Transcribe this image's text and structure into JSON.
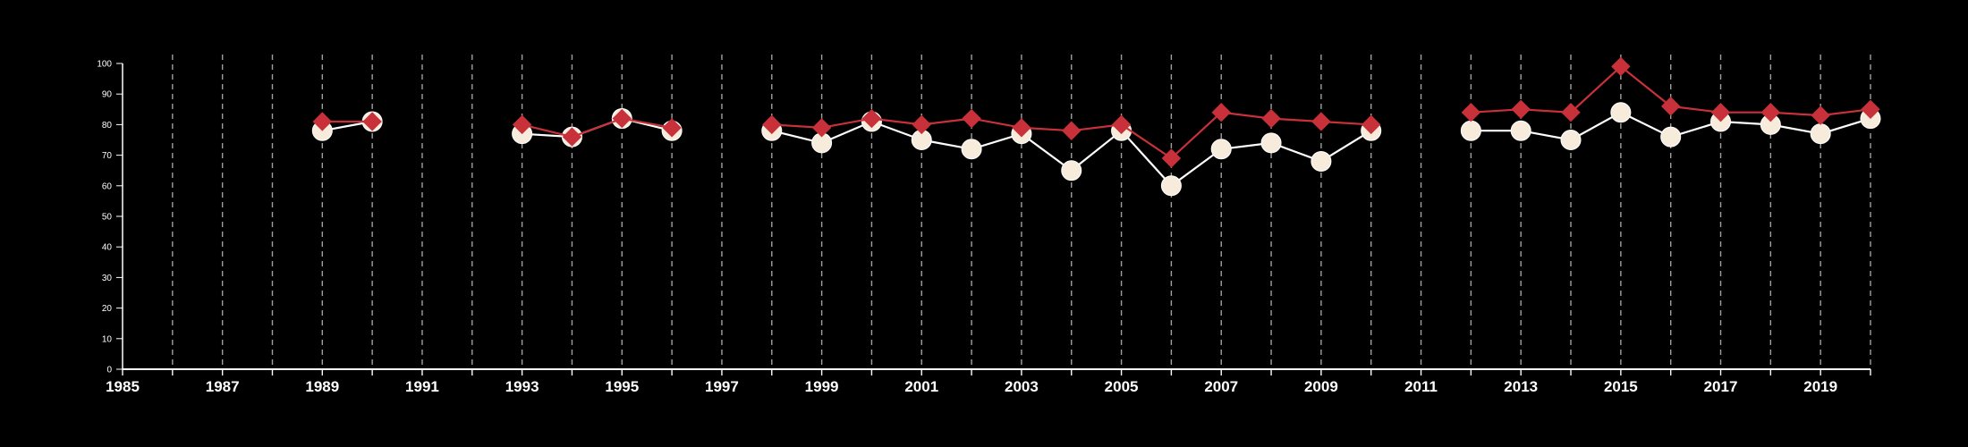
{
  "chart_data": {
    "type": "line",
    "title": "",
    "xlabel": "",
    "ylabel": "",
    "xlim": [
      1985,
      2020
    ],
    "ylim": [
      0,
      100
    ],
    "y_ticks": [
      "0",
      "10",
      "20",
      "30",
      "40",
      "50",
      "60",
      "70",
      "80",
      "90",
      "100"
    ],
    "x_ticks": [
      "1985",
      "1987",
      "1989",
      "1991",
      "1993",
      "1995",
      "1997",
      "1999",
      "2001",
      "2003",
      "2005",
      "2007",
      "2009",
      "2011",
      "2013",
      "2015",
      "2017",
      "2019"
    ],
    "grid": "vertical dashed, every year",
    "colors": {
      "background": "#000000",
      "series_white": "#ffffff",
      "series_white_marker": "#f7ebdc",
      "series_red": "#c8313a"
    },
    "series": [
      {
        "color": "#c8313a",
        "marker": "diamond",
        "points": [
          [
            1989,
            81
          ],
          [
            1990,
            81
          ],
          [
            1993,
            80
          ],
          [
            1994,
            76
          ],
          [
            1995,
            82
          ],
          [
            1996,
            79
          ],
          [
            1998,
            80
          ],
          [
            1999,
            79
          ],
          [
            2000,
            82
          ],
          [
            2001,
            80
          ],
          [
            2002,
            82
          ],
          [
            2003,
            79
          ],
          [
            2004,
            78
          ],
          [
            2005,
            80
          ],
          [
            2006,
            69
          ],
          [
            2007,
            84
          ],
          [
            2008,
            82
          ],
          [
            2009,
            81
          ],
          [
            2010,
            80
          ],
          [
            2012,
            84
          ],
          [
            2013,
            85
          ],
          [
            2014,
            84
          ],
          [
            2015,
            99
          ],
          [
            2016,
            86
          ],
          [
            2017,
            84
          ],
          [
            2018,
            84
          ],
          [
            2019,
            83
          ],
          [
            2020,
            85
          ]
        ]
      },
      {
        "color": "#ffffff",
        "marker": "circle",
        "points": [
          [
            1989,
            78
          ],
          [
            1990,
            81
          ],
          [
            1993,
            77
          ],
          [
            1994,
            76
          ],
          [
            1995,
            82
          ],
          [
            1996,
            78
          ],
          [
            1998,
            78
          ],
          [
            1999,
            74
          ],
          [
            2000,
            81
          ],
          [
            2001,
            75
          ],
          [
            2002,
            72
          ],
          [
            2003,
            77
          ],
          [
            2004,
            65
          ],
          [
            2005,
            78
          ],
          [
            2006,
            60
          ],
          [
            2007,
            72
          ],
          [
            2008,
            74
          ],
          [
            2009,
            68
          ],
          [
            2010,
            78
          ],
          [
            2012,
            78
          ],
          [
            2013,
            78
          ],
          [
            2014,
            75
          ],
          [
            2015,
            84
          ],
          [
            2016,
            76
          ],
          [
            2017,
            81
          ],
          [
            2018,
            80
          ],
          [
            2019,
            77
          ],
          [
            2020,
            82
          ]
        ]
      }
    ]
  }
}
